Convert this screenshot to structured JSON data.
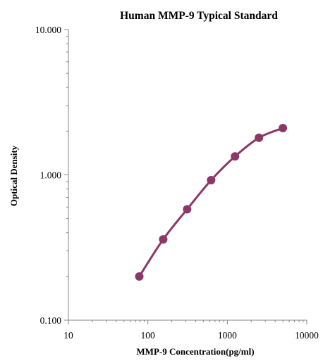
{
  "chart_data": {
    "type": "line",
    "title": "Human  MMP-9 Typical Standard",
    "xlabel": "MMP-9  Concentration(pg/ml)",
    "ylabel": "Optical  Density",
    "x_scale": "log",
    "y_scale": "log",
    "xlim": [
      10,
      10000
    ],
    "ylim": [
      0.1,
      10
    ],
    "x_ticks": [
      {
        "value": 10,
        "label": "10"
      },
      {
        "value": 100,
        "label": "100"
      },
      {
        "value": 1000,
        "label": "1000"
      },
      {
        "value": 10000,
        "label": "10000"
      }
    ],
    "y_ticks": [
      {
        "value": 0.1,
        "label": "0.100"
      },
      {
        "value": 1,
        "label": "1.000"
      },
      {
        "value": 10,
        "label": "10.000"
      }
    ],
    "grid": false,
    "legend": "none",
    "series": [
      {
        "color": "#8b3866",
        "marker": "circle",
        "smooth": true,
        "x": [
          78,
          156,
          312,
          625,
          1250,
          2500,
          5000
        ],
        "y": [
          0.2,
          0.36,
          0.58,
          0.92,
          1.34,
          1.8,
          2.1
        ]
      }
    ]
  }
}
